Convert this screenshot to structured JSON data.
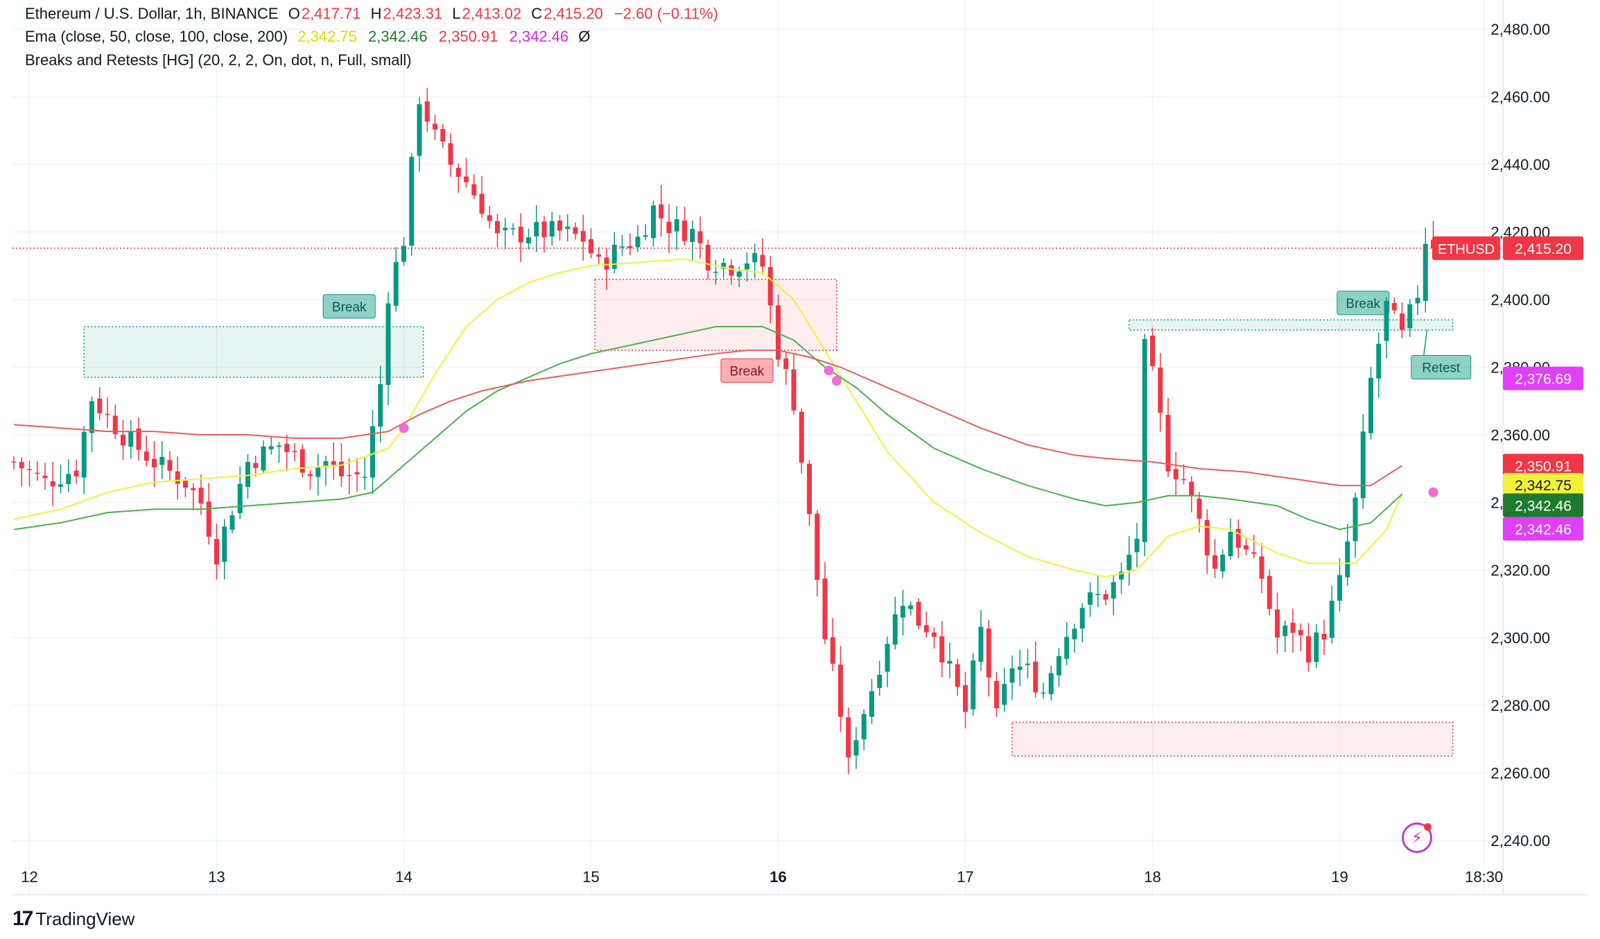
{
  "header": {
    "symbol": "Ethereum / U.S. Dollar, 1h, BINANCE",
    "o_label": "O",
    "o_value": "2,417.71",
    "h_label": "H",
    "h_value": "2,423.31",
    "l_label": "L",
    "l_value": "2,413.02",
    "c_label": "C",
    "c_value": "2,415.20",
    "change": "−2.60 (−0.11%)"
  },
  "ema_legend": {
    "label": "Ema (close, 50, close, 100, close, 200)",
    "values": [
      "2,342.75",
      "2,342.46",
      "2,350.91",
      "2,342.46"
    ],
    "tail": "Ø"
  },
  "indicator_legend": {
    "label": "Breaks and Retests [HG] (20, 2, 2, On, dot, n, Full, small)"
  },
  "branding": {
    "name": "TradingView"
  },
  "colors": {
    "up": "#089981",
    "down": "#f23645",
    "ema50": "#f2f23a",
    "ema100": "#4caf50",
    "ema200": "#f05a5a",
    "magenta": "#e040fb",
    "price_line": "#f23645"
  },
  "chart_data": {
    "type": "candlestick",
    "title": "Ethereum / U.S. Dollar, 1h, BINANCE",
    "ylim": [
      2232,
      2488
    ],
    "yticks": [
      2240,
      2260,
      2280,
      2300,
      2320,
      2340,
      2360,
      2380,
      2400,
      2420,
      2440,
      2460,
      2480
    ],
    "ytick_labels": [
      "2,240.00",
      "2,260.00",
      "2,280.00",
      "2,300.00",
      "2,320.00",
      "2,340.00",
      "2,360.00",
      "2,380.00",
      "2,400.00",
      "2,420.00",
      "2,440.00",
      "2,460.00",
      "2,480.00"
    ],
    "grid": true,
    "x_range_hours": [
      0,
      208
    ],
    "xticks": [
      {
        "hour": 2,
        "label": "12"
      },
      {
        "hour": 26,
        "label": "13"
      },
      {
        "hour": 50,
        "label": "14"
      },
      {
        "hour": 74,
        "label": "15"
      },
      {
        "hour": 98,
        "label": "16"
      },
      {
        "hour": 122,
        "label": "17"
      },
      {
        "hour": 146,
        "label": "18"
      },
      {
        "hour": 170,
        "label": "19"
      },
      {
        "hour": 188.5,
        "label": "18:30"
      }
    ],
    "anchors": [
      [
        0,
        2352
      ],
      [
        4,
        2346
      ],
      [
        8,
        2350
      ],
      [
        10,
        2371
      ],
      [
        14,
        2360
      ],
      [
        18,
        2352
      ],
      [
        22,
        2346
      ],
      [
        24,
        2340
      ],
      [
        26,
        2325
      ],
      [
        30,
        2352
      ],
      [
        34,
        2357
      ],
      [
        38,
        2350
      ],
      [
        40,
        2352
      ],
      [
        42,
        2348
      ],
      [
        45,
        2348
      ],
      [
        47,
        2375
      ],
      [
        48,
        2402
      ],
      [
        50,
        2418
      ],
      [
        52,
        2460
      ],
      [
        54,
        2448
      ],
      [
        56,
        2440
      ],
      [
        58,
        2435
      ],
      [
        60,
        2428
      ],
      [
        62,
        2418
      ],
      [
        66,
        2420
      ],
      [
        70,
        2420
      ],
      [
        73,
        2418
      ],
      [
        75,
        2410
      ],
      [
        78,
        2416
      ],
      [
        80,
        2418
      ],
      [
        82,
        2427
      ],
      [
        84,
        2422
      ],
      [
        87,
        2420
      ],
      [
        89,
        2412
      ],
      [
        92,
        2410
      ],
      [
        94,
        2412
      ],
      [
        96,
        2410
      ],
      [
        98,
        2385
      ],
      [
        100,
        2370
      ],
      [
        102,
        2335
      ],
      [
        104,
        2300
      ],
      [
        106,
        2278
      ],
      [
        107,
        2262
      ],
      [
        108,
        2272
      ],
      [
        110,
        2285
      ],
      [
        112,
        2300
      ],
      [
        114,
        2312
      ],
      [
        116,
        2305
      ],
      [
        118,
        2302
      ],
      [
        120,
        2290
      ],
      [
        122,
        2278
      ],
      [
        124,
        2302
      ],
      [
        126,
        2276
      ],
      [
        128,
        2292
      ],
      [
        130,
        2290
      ],
      [
        132,
        2284
      ],
      [
        134,
        2297
      ],
      [
        137,
        2310
      ],
      [
        140,
        2313
      ],
      [
        142,
        2318
      ],
      [
        144,
        2330
      ],
      [
        145,
        2385
      ],
      [
        146,
        2377
      ],
      [
        148,
        2352
      ],
      [
        150,
        2347
      ],
      [
        152,
        2334
      ],
      [
        154,
        2320
      ],
      [
        156,
        2332
      ],
      [
        158,
        2325
      ],
      [
        160,
        2318
      ],
      [
        162,
        2300
      ],
      [
        164,
        2303
      ],
      [
        166,
        2296
      ],
      [
        168,
        2302
      ],
      [
        170,
        2316
      ],
      [
        172,
        2340
      ],
      [
        174,
        2376
      ],
      [
        176,
        2398
      ],
      [
        178,
        2389
      ],
      [
        180,
        2402
      ],
      [
        181,
        2418
      ],
      [
        182,
        2415.2
      ]
    ],
    "last_close": 2415.2,
    "series": [
      {
        "name": "Ema 50",
        "color": "#f2f23a",
        "last": 2342.75,
        "points": [
          [
            0,
            2335
          ],
          [
            6,
            2338
          ],
          [
            12,
            2343
          ],
          [
            18,
            2346
          ],
          [
            24,
            2347
          ],
          [
            30,
            2348
          ],
          [
            36,
            2350
          ],
          [
            42,
            2351
          ],
          [
            48,
            2356
          ],
          [
            50,
            2362
          ],
          [
            54,
            2378
          ],
          [
            58,
            2392
          ],
          [
            62,
            2400
          ],
          [
            66,
            2405
          ],
          [
            70,
            2408
          ],
          [
            74,
            2410
          ],
          [
            80,
            2411
          ],
          [
            86,
            2412
          ],
          [
            92,
            2409
          ],
          [
            96,
            2408
          ],
          [
            100,
            2400
          ],
          [
            104,
            2385
          ],
          [
            108,
            2370
          ],
          [
            112,
            2355
          ],
          [
            118,
            2340
          ],
          [
            124,
            2331
          ],
          [
            130,
            2324
          ],
          [
            136,
            2320
          ],
          [
            140,
            2318
          ],
          [
            144,
            2320
          ],
          [
            148,
            2330
          ],
          [
            152,
            2333
          ],
          [
            156,
            2332
          ],
          [
            162,
            2325
          ],
          [
            166,
            2322
          ],
          [
            172,
            2322
          ],
          [
            176,
            2332
          ],
          [
            178,
            2342.75
          ]
        ]
      },
      {
        "name": "Ema 100",
        "color": "#4caf50",
        "last": 2342.46,
        "points": [
          [
            0,
            2332
          ],
          [
            6,
            2334
          ],
          [
            12,
            2337
          ],
          [
            18,
            2338
          ],
          [
            24,
            2338
          ],
          [
            30,
            2339
          ],
          [
            36,
            2340
          ],
          [
            42,
            2341
          ],
          [
            46,
            2343
          ],
          [
            50,
            2351
          ],
          [
            54,
            2359
          ],
          [
            58,
            2367
          ],
          [
            62,
            2373
          ],
          [
            66,
            2377
          ],
          [
            70,
            2381
          ],
          [
            74,
            2384
          ],
          [
            80,
            2387
          ],
          [
            86,
            2390
          ],
          [
            90,
            2392
          ],
          [
            96,
            2392
          ],
          [
            100,
            2388
          ],
          [
            104,
            2380
          ],
          [
            108,
            2374
          ],
          [
            112,
            2366
          ],
          [
            118,
            2356
          ],
          [
            124,
            2350
          ],
          [
            130,
            2345
          ],
          [
            136,
            2341
          ],
          [
            140,
            2339
          ],
          [
            144,
            2340
          ],
          [
            148,
            2342
          ],
          [
            152,
            2342
          ],
          [
            156,
            2341
          ],
          [
            162,
            2339
          ],
          [
            166,
            2335
          ],
          [
            170,
            2332
          ],
          [
            174,
            2334
          ],
          [
            178,
            2342.46
          ]
        ]
      },
      {
        "name": "Ema 200",
        "color": "#f05a5a",
        "last": 2350.91,
        "points": [
          [
            0,
            2363
          ],
          [
            6,
            2362
          ],
          [
            12,
            2361
          ],
          [
            18,
            2361
          ],
          [
            24,
            2360
          ],
          [
            30,
            2360
          ],
          [
            36,
            2359
          ],
          [
            42,
            2359
          ],
          [
            48,
            2361
          ],
          [
            52,
            2366
          ],
          [
            56,
            2370
          ],
          [
            60,
            2373
          ],
          [
            66,
            2376
          ],
          [
            72,
            2378
          ],
          [
            78,
            2380
          ],
          [
            84,
            2382
          ],
          [
            90,
            2384
          ],
          [
            94,
            2385
          ],
          [
            98,
            2385
          ],
          [
            102,
            2383
          ],
          [
            106,
            2380
          ],
          [
            110,
            2376
          ],
          [
            114,
            2372
          ],
          [
            118,
            2368
          ],
          [
            124,
            2362
          ],
          [
            130,
            2357
          ],
          [
            136,
            2354
          ],
          [
            140,
            2353
          ],
          [
            146,
            2352
          ],
          [
            152,
            2350
          ],
          [
            158,
            2349
          ],
          [
            164,
            2347
          ],
          [
            170,
            2345
          ],
          [
            174,
            2345
          ],
          [
            178,
            2350.91
          ]
        ]
      }
    ],
    "zones": [
      {
        "kind": "support",
        "from": 9,
        "to": 52.5,
        "low": 2377,
        "high": 2392
      },
      {
        "kind": "resistance",
        "from": 74.5,
        "to": 105.5,
        "low": 2385,
        "high": 2406
      },
      {
        "kind": "resistance",
        "from": 128,
        "to": 184.5,
        "low": 2265,
        "high": 2275
      },
      {
        "kind": "support",
        "from": 143,
        "to": 184.5,
        "low": 2391,
        "high": 2394
      }
    ],
    "labels": [
      {
        "text": "Break",
        "kind": "up",
        "hour": 43,
        "price": 2398
      },
      {
        "text": "Break",
        "kind": "down",
        "hour": 94,
        "price": 2379
      },
      {
        "text": "Break",
        "kind": "up",
        "hour": 173,
        "price": 2399
      },
      {
        "text": "Retest",
        "kind": "up",
        "hour": 183,
        "price": 2380
      }
    ],
    "cross_dots": [
      [
        50,
        2362
      ],
      [
        104.5,
        2379
      ],
      [
        105.5,
        2376
      ],
      [
        182,
        2343
      ]
    ],
    "price_tags": [
      {
        "text": "ETHUSD",
        "price": 2415.2,
        "kind": "symbol"
      },
      {
        "text": "2,415.20",
        "price": 2415.2,
        "bg": "#f23645",
        "fg": "#ffffff"
      },
      {
        "text": "2,376.69",
        "price": 2376.69,
        "bg": "#e040fb",
        "fg": "#ffffff"
      },
      {
        "text": "2,350.91",
        "price": 2350.91,
        "bg": "#f23645",
        "fg": "#ffffff"
      },
      {
        "text": "2,342.75",
        "price": 2342.75,
        "bg": "#f2f23a",
        "fg": "#131722"
      },
      {
        "text": "2,342.46",
        "price": 2342.46,
        "bg": "#1e7b2e",
        "fg": "#ffffff"
      },
      {
        "text": "2,342.46",
        "price": 2342.46,
        "bg": "#e040fb",
        "fg": "#ffffff"
      }
    ]
  }
}
